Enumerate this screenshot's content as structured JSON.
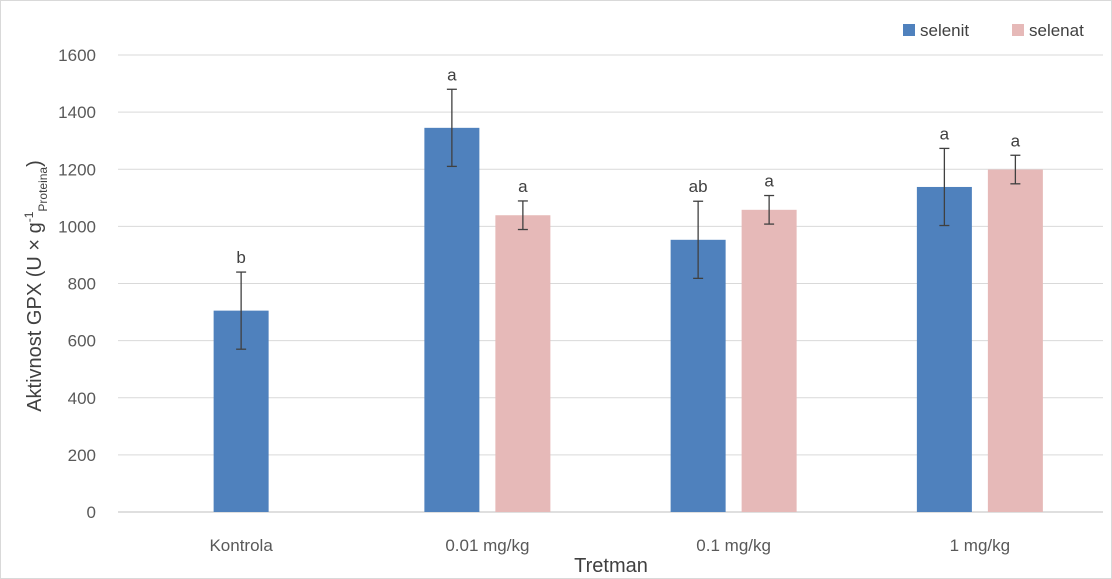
{
  "chart_data": {
    "type": "bar",
    "categories": [
      "Kontrola",
      "0.01 mg/kg",
      "0.1 mg/kg",
      "1 mg/kg"
    ],
    "series": [
      {
        "name": "selenit",
        "color": "#4f81bd",
        "values": [
          705,
          1345,
          953,
          1138
        ],
        "errors": [
          135,
          135,
          135,
          135
        ],
        "labels": [
          "b",
          "a",
          "ab",
          "a"
        ]
      },
      {
        "name": "selenat",
        "color": "#e6b9b8",
        "values": [
          null,
          1039,
          1058,
          1199
        ],
        "errors": [
          null,
          50,
          50,
          50
        ],
        "labels": [
          null,
          "a",
          "a",
          "a"
        ]
      }
    ],
    "xlabel": "Tretman",
    "ylabel": "Aktivnost GPX (U × g",
    "ylabel_sup": "-1",
    "ylabel_sub": "Proteina",
    "ylabel_close": ")",
    "ylim": [
      0,
      1600
    ],
    "yticks": [
      0,
      200,
      400,
      600,
      800,
      1000,
      1200,
      1400,
      1600
    ],
    "grid": true,
    "legend_position": "top-right"
  }
}
